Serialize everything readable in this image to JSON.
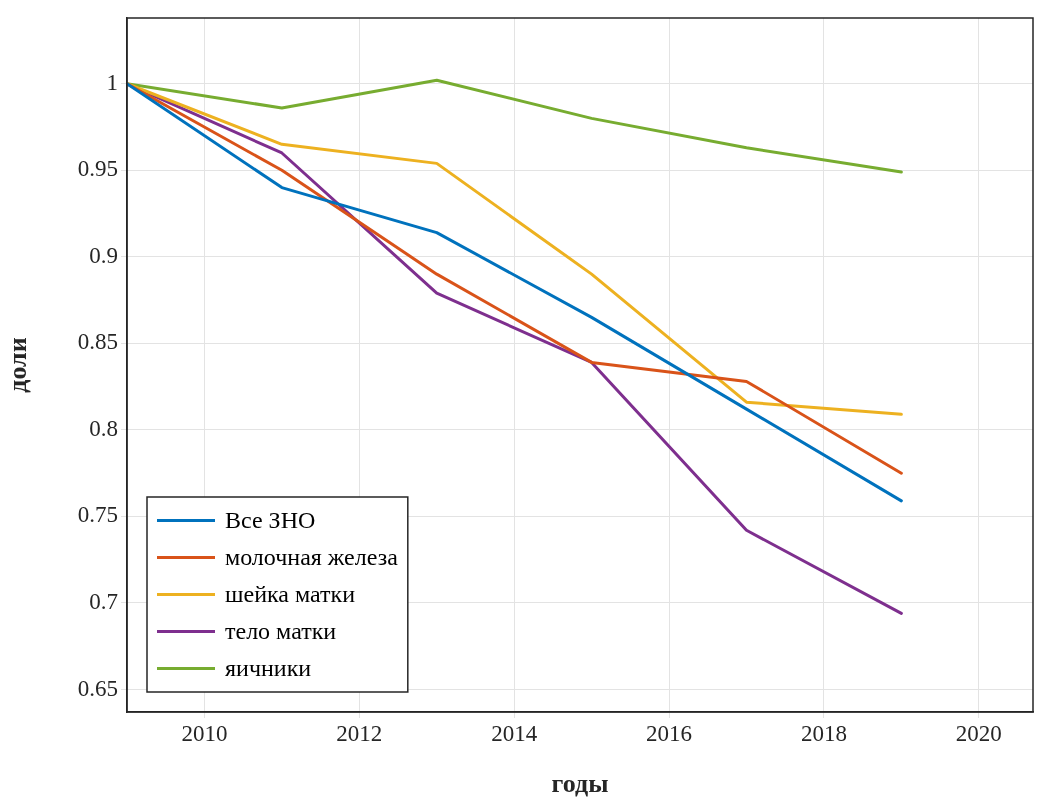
{
  "chart_data": {
    "type": "line",
    "xlabel": "годы",
    "ylabel": "доли",
    "x": [
      2009,
      2011,
      2013,
      2015,
      2017,
      2019
    ],
    "series": [
      {
        "name": "Все ЗНО",
        "color": "#0072bd",
        "values": [
          1,
          0.94,
          0.914,
          0.865,
          0.812,
          0.759
        ]
      },
      {
        "name": "молочная железа",
        "color": "#d95319",
        "values": [
          1,
          0.95,
          0.89,
          0.839,
          0.828,
          0.775
        ]
      },
      {
        "name": "шейка матки",
        "color": "#edb120",
        "values": [
          1,
          0.965,
          0.954,
          0.89,
          0.816,
          0.809
        ]
      },
      {
        "name": "тело матки",
        "color": "#7e2f8e",
        "values": [
          1,
          0.96,
          0.879,
          0.839,
          0.742,
          0.694
        ]
      },
      {
        "name": "яичники",
        "color": "#77ac30",
        "values": [
          1,
          0.986,
          1.002,
          0.98,
          0.963,
          0.949
        ]
      }
    ],
    "xlim": [
      2009,
      2020.7
    ],
    "xticks": [
      2010,
      2012,
      2014,
      2016,
      2018,
      2020
    ],
    "ylim": [
      0.637,
      1.038
    ],
    "yticks": [
      0.65,
      0.7,
      0.75,
      0.8,
      0.85,
      0.9,
      0.95,
      1
    ],
    "grid": true,
    "legend": "bottom left",
    "marker": "none",
    "line_style": "solid"
  }
}
